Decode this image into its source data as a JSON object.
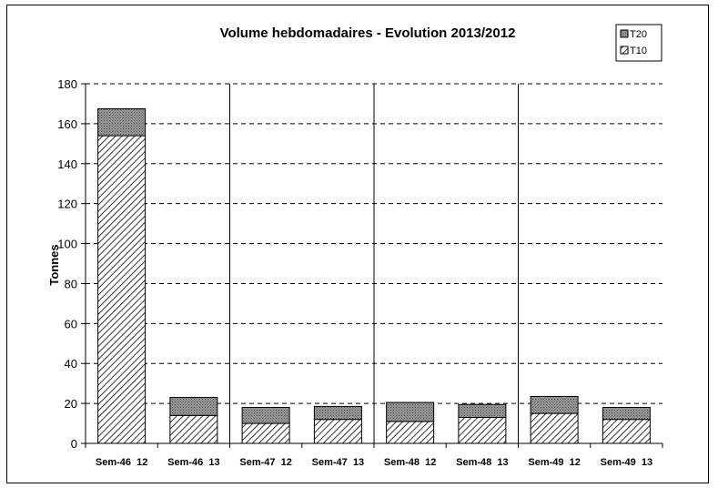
{
  "chart_data": {
    "type": "bar",
    "stacked": true,
    "title": "Volume hebdomadaires  - Evolution 2013/2012",
    "ylabel": "Tonnes",
    "xlabel": "",
    "ylim": [
      0,
      180
    ],
    "yticks": [
      0,
      20,
      40,
      60,
      80,
      100,
      120,
      140,
      160,
      180
    ],
    "grid": "horizontal dashed",
    "legend_position": "top-right",
    "categories": [
      "Sem-46  12",
      "Sem-46  13",
      "Sem-47  12",
      "Sem-47  13",
      "Sem-48  12",
      "Sem-48  13",
      "Sem-49  12",
      "Sem-49  13"
    ],
    "series": [
      {
        "name": "T10",
        "values": [
          154,
          14,
          10,
          12,
          11,
          13,
          15,
          12
        ]
      },
      {
        "name": "T20",
        "values": [
          13.5,
          9,
          8,
          6.5,
          9.5,
          6.5,
          8.5,
          6
        ]
      }
    ],
    "legend_order": [
      "T20",
      "T10"
    ]
  }
}
